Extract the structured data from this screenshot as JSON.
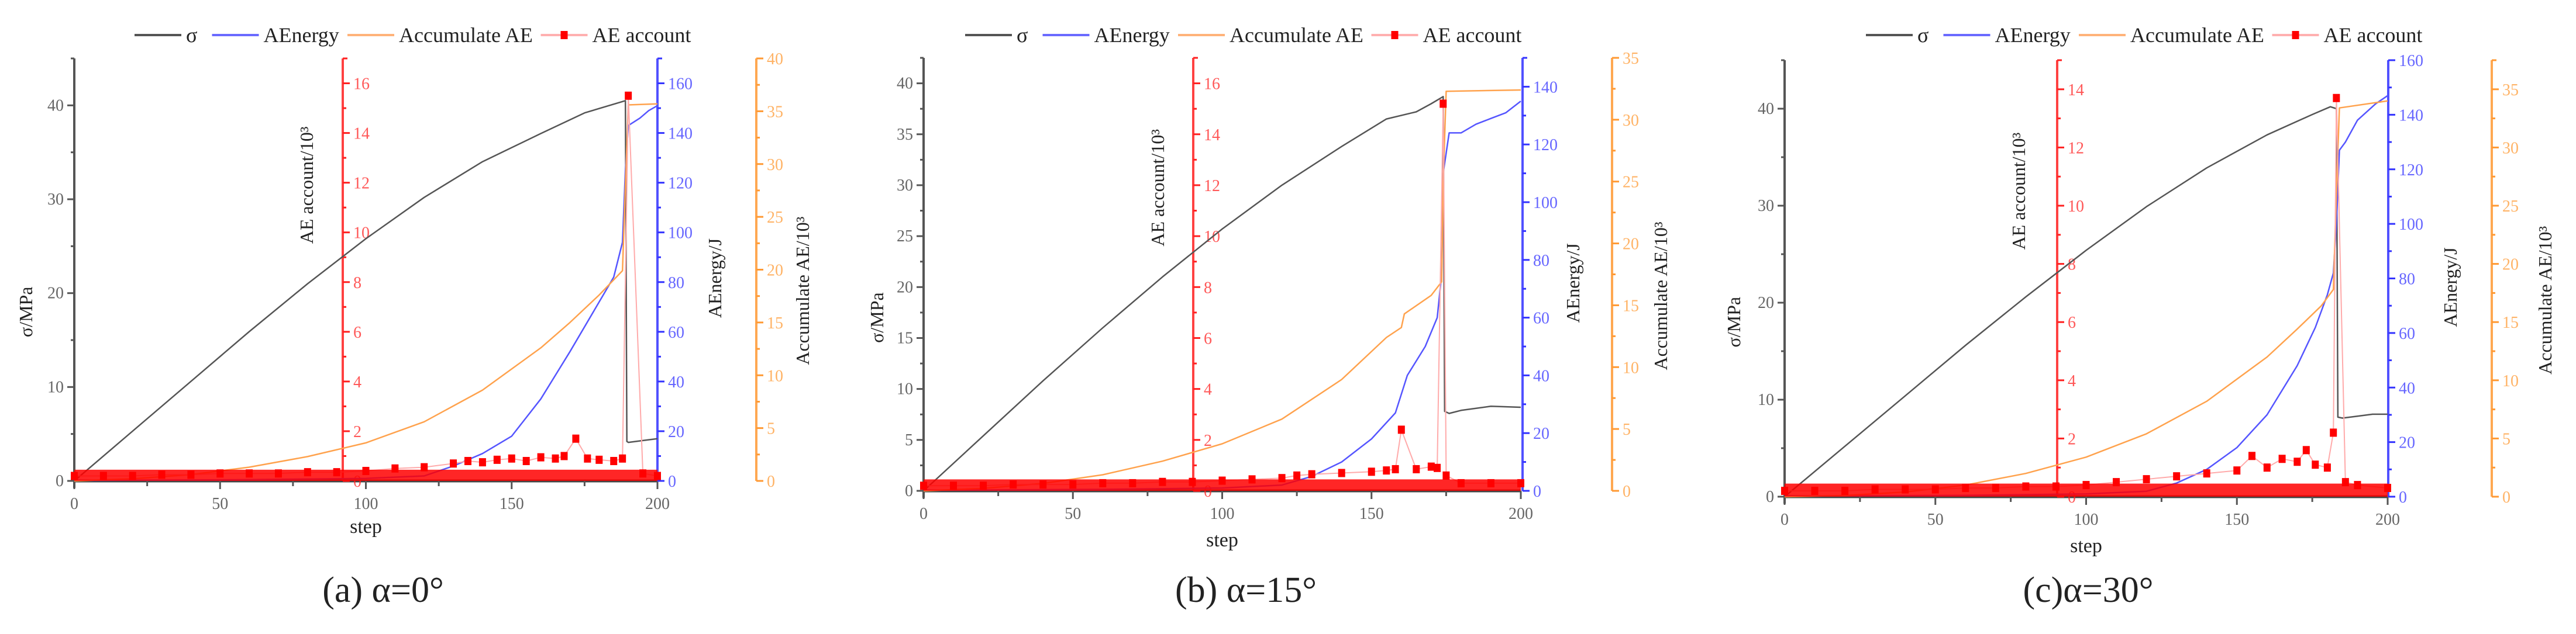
{
  "figure": {
    "legend": [
      {
        "label": "σ",
        "color": "#555555",
        "kind": "line"
      },
      {
        "label": "AEnergy",
        "color": "#6a6aff",
        "kind": "line"
      },
      {
        "label": "Accumulate AE",
        "color": "#ffb37a",
        "kind": "line"
      },
      {
        "label": "AE account",
        "color": "#ff0000",
        "kind": "line-marker",
        "line_color": "#ffb0b0"
      }
    ],
    "colors": {
      "sigma": "#555555",
      "ae_count": "#ff2020",
      "ae_energy": "#3333ff",
      "accumulate": "#ff9933",
      "axis_label": "#222222"
    },
    "axis_titles": {
      "x": "step",
      "sigma": "σ/MPa",
      "ae_count": "AE account/10³",
      "ae_energy": "AEnergy/J",
      "accumulate": "Accumulate AE/10³"
    }
  },
  "chart_data": [
    {
      "type": "line",
      "title": "(a) α=0°",
      "caption": "(a) α=0°",
      "xlabel": "step",
      "xlim": [
        0,
        200
      ],
      "xticks": [
        0,
        50,
        100,
        150,
        200
      ],
      "axes": {
        "sigma": {
          "label": "σ/MPa",
          "ylim": [
            0,
            45
          ],
          "ticks": [
            0,
            10,
            20,
            30,
            40
          ],
          "minor": 5
        },
        "ae_count": {
          "label": "AE account/10³",
          "ylim": [
            0,
            17
          ],
          "ticks": [
            0,
            2,
            4,
            6,
            8,
            10,
            12,
            14,
            16
          ],
          "minor": 1
        },
        "ae_energy": {
          "label": "AEnergy/J",
          "ylim": [
            0,
            170
          ],
          "ticks": [
            0,
            20,
            40,
            60,
            80,
            100,
            120,
            140,
            160
          ],
          "minor": 10
        },
        "accumulate": {
          "label": "Accumulate AE/10³",
          "ylim": [
            0,
            40
          ],
          "ticks": [
            0,
            5,
            10,
            15,
            20,
            25,
            30,
            35,
            40
          ],
          "minor": 2.5
        }
      },
      "series": [
        {
          "name": "σ",
          "axis": "sigma",
          "x": [
            0,
            20,
            40,
            60,
            80,
            100,
            120,
            140,
            160,
            175,
            189,
            189.5,
            190,
            195,
            200
          ],
          "y": [
            0,
            5.3,
            10.6,
            15.9,
            21.0,
            25.8,
            30.2,
            34.0,
            37.0,
            39.2,
            40.5,
            4.2,
            4.1,
            4.3,
            4.5
          ]
        },
        {
          "name": "AEnergy",
          "axis": "ae_energy",
          "x": [
            0,
            60,
            100,
            120,
            130,
            140,
            150,
            160,
            170,
            180,
            185,
            188,
            189,
            190,
            194,
            197,
            200
          ],
          "y": [
            0.2,
            0.5,
            1,
            2,
            6,
            11,
            18,
            33,
            52,
            72,
            82,
            96,
            125,
            143,
            146,
            149,
            151
          ]
        },
        {
          "name": "Accumulate AE",
          "axis": "accumulate",
          "x": [
            0,
            20,
            40,
            60,
            80,
            100,
            120,
            140,
            160,
            170,
            180,
            188,
            189,
            190,
            200
          ],
          "y": [
            0,
            0.2,
            0.6,
            1.3,
            2.3,
            3.6,
            5.6,
            8.6,
            12.6,
            15.0,
            17.6,
            19.9,
            28,
            35.6,
            35.7
          ]
        },
        {
          "name": "AE account",
          "axis": "ae_count",
          "kind": "scatter",
          "x": [
            0,
            10,
            20,
            30,
            40,
            50,
            60,
            70,
            80,
            90,
            100,
            110,
            120,
            130,
            135,
            140,
            145,
            150,
            155,
            160,
            165,
            168,
            172,
            176,
            180,
            185,
            188,
            190,
            195,
            200
          ],
          "y": [
            0.2,
            0.2,
            0.2,
            0.25,
            0.25,
            0.3,
            0.3,
            0.3,
            0.35,
            0.35,
            0.4,
            0.5,
            0.55,
            0.7,
            0.8,
            0.75,
            0.85,
            0.9,
            0.8,
            0.95,
            0.9,
            1.0,
            1.7,
            0.9,
            0.85,
            0.8,
            0.9,
            15.5,
            0.3,
            0.2
          ]
        }
      ]
    },
    {
      "type": "line",
      "title": "(b) α=15°",
      "caption": "(b) α=15°",
      "xlabel": "step",
      "xlim": [
        0,
        200
      ],
      "xticks": [
        0,
        50,
        100,
        150,
        200
      ],
      "axes": {
        "sigma": {
          "label": "σ/MPa",
          "ylim": [
            0,
            42.5
          ],
          "ticks": [
            0,
            5,
            10,
            15,
            20,
            25,
            30,
            35,
            40
          ],
          "minor": 2.5
        },
        "ae_count": {
          "label": "AE account/10³",
          "ylim": [
            0,
            17
          ],
          "ticks": [
            0,
            2,
            4,
            6,
            8,
            10,
            12,
            14,
            16
          ],
          "minor": 1
        },
        "ae_energy": {
          "label": "AEnergy/J",
          "ylim": [
            0,
            150
          ],
          "ticks": [
            0,
            20,
            40,
            60,
            80,
            100,
            120,
            140
          ],
          "minor": 10
        },
        "accumulate": {
          "label": "Accumulate AE/10³",
          "ylim": [
            0,
            35
          ],
          "ticks": [
            0,
            5,
            10,
            15,
            20,
            25,
            30,
            35
          ],
          "minor": 2.5
        }
      },
      "series": [
        {
          "name": "σ",
          "axis": "sigma",
          "x": [
            0,
            20,
            40,
            60,
            80,
            100,
            120,
            140,
            155,
            165,
            170,
            174,
            174.5,
            176,
            180,
            190,
            200
          ],
          "y": [
            0,
            5.4,
            10.8,
            16.0,
            21.0,
            25.7,
            30.0,
            33.8,
            36.5,
            37.2,
            38.0,
            38.7,
            7.8,
            7.6,
            7.9,
            8.3,
            8.2
          ]
        },
        {
          "name": "AEnergy",
          "axis": "ae_energy",
          "x": [
            0,
            60,
            100,
            120,
            130,
            140,
            150,
            158,
            162,
            168,
            172,
            173.5,
            174,
            176,
            180,
            185,
            190,
            195,
            200
          ],
          "y": [
            0.2,
            0.5,
            1,
            2,
            5,
            10,
            18,
            27,
            40,
            50,
            60,
            75,
            110,
            124,
            124,
            127,
            129,
            131,
            135
          ]
        },
        {
          "name": "Accumulate AE",
          "axis": "accumulate",
          "x": [
            0,
            20,
            40,
            60,
            80,
            100,
            120,
            140,
            155,
            160,
            161,
            170,
            173.5,
            174,
            175,
            200
          ],
          "y": [
            0,
            0.2,
            0.6,
            1.3,
            2.4,
            3.8,
            5.8,
            9.0,
            12.4,
            13.2,
            14.3,
            15.8,
            16.9,
            25,
            32.3,
            32.4
          ]
        },
        {
          "name": "AE account",
          "axis": "ae_count",
          "kind": "scatter",
          "x": [
            0,
            10,
            20,
            30,
            40,
            50,
            60,
            70,
            80,
            90,
            100,
            110,
            120,
            125,
            130,
            140,
            150,
            155,
            158,
            160,
            165,
            170,
            172,
            174,
            175,
            180,
            190,
            200
          ],
          "y": [
            0.2,
            0.2,
            0.2,
            0.25,
            0.25,
            0.25,
            0.3,
            0.3,
            0.35,
            0.35,
            0.4,
            0.45,
            0.5,
            0.6,
            0.65,
            0.7,
            0.75,
            0.8,
            0.85,
            2.4,
            0.85,
            0.95,
            0.9,
            15.2,
            0.6,
            0.3,
            0.3,
            0.3
          ]
        }
      ]
    },
    {
      "type": "line",
      "title": "(c)α=30°",
      "caption": "(c)α=30°",
      "xlabel": "step",
      "xlim": [
        0,
        200
      ],
      "xticks": [
        0,
        50,
        100,
        150,
        200
      ],
      "axes": {
        "sigma": {
          "label": "σ/MPa",
          "ylim": [
            0,
            45
          ],
          "ticks": [
            0,
            10,
            20,
            30,
            40
          ],
          "minor": 5
        },
        "ae_count": {
          "label": "AE account/10³",
          "ylim": [
            0,
            15
          ],
          "ticks": [
            0,
            2,
            4,
            6,
            8,
            10,
            12,
            14
          ],
          "minor": 1
        },
        "ae_energy": {
          "label": "AEnergy/J",
          "ylim": [
            0,
            160
          ],
          "ticks": [
            0,
            20,
            40,
            60,
            80,
            100,
            120,
            140,
            160
          ],
          "minor": 10
        },
        "accumulate": {
          "label": "Accumulate AE/10³",
          "ylim": [
            0,
            37.5
          ],
          "ticks": [
            0,
            5,
            10,
            15,
            20,
            25,
            30,
            35
          ],
          "minor": 2.5
        }
      },
      "series": [
        {
          "name": "σ",
          "axis": "sigma",
          "x": [
            0,
            20,
            40,
            60,
            80,
            100,
            120,
            140,
            160,
            175,
            181,
            183,
            183.5,
            185,
            190,
            195,
            200
          ],
          "y": [
            0,
            5.2,
            10.4,
            15.6,
            20.6,
            25.4,
            29.9,
            33.9,
            37.3,
            39.4,
            40.2,
            40.0,
            8.2,
            8.1,
            8.3,
            8.5,
            8.5
          ]
        },
        {
          "name": "AEnergy",
          "axis": "ae_energy",
          "x": [
            0,
            60,
            100,
            120,
            130,
            140,
            150,
            160,
            170,
            176,
            180,
            182,
            183,
            184,
            186,
            188,
            190,
            193,
            196,
            200
          ],
          "y": [
            0.2,
            0.5,
            1,
            2,
            5,
            10,
            18,
            30,
            48,
            62,
            74,
            82,
            100,
            127,
            130,
            134,
            138,
            141,
            144,
            147
          ]
        },
        {
          "name": "Accumulate AE",
          "axis": "accumulate",
          "x": [
            0,
            20,
            40,
            60,
            80,
            100,
            120,
            140,
            160,
            170,
            178,
            182,
            183,
            184,
            200
          ],
          "y": [
            0,
            0.1,
            0.4,
            1.0,
            2.0,
            3.4,
            5.4,
            8.2,
            12.0,
            14.4,
            16.4,
            17.8,
            26,
            33.4,
            34.0
          ]
        },
        {
          "name": "AE account",
          "axis": "ae_count",
          "kind": "scatter",
          "x": [
            0,
            10,
            20,
            30,
            40,
            50,
            60,
            70,
            80,
            90,
            100,
            110,
            120,
            130,
            140,
            150,
            155,
            160,
            165,
            170,
            173,
            176,
            180,
            182,
            183,
            186,
            190,
            200
          ],
          "y": [
            0.2,
            0.2,
            0.2,
            0.25,
            0.25,
            0.25,
            0.3,
            0.3,
            0.35,
            0.35,
            0.4,
            0.5,
            0.6,
            0.7,
            0.8,
            0.9,
            1.4,
            1.0,
            1.3,
            1.2,
            1.6,
            1.1,
            1.0,
            2.2,
            13.7,
            0.5,
            0.4,
            0.3
          ]
        }
      ]
    }
  ]
}
